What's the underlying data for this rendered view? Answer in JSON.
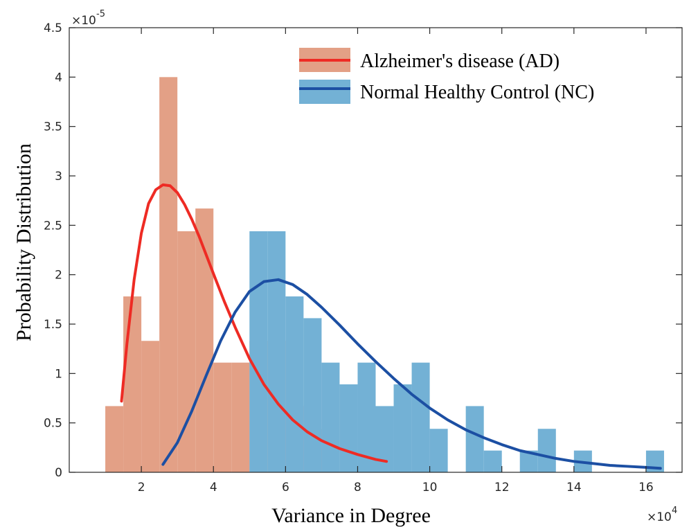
{
  "chart_data": {
    "type": "bar",
    "xlabel": "Variance in Degree",
    "ylabel": "Probability Distribution",
    "x_multiplier": "×10",
    "x_multiplier_exp": "4",
    "y_multiplier": "×10",
    "y_multiplier_exp": "-5",
    "xlim": [
      0,
      17
    ],
    "ylim": [
      0,
      4.5
    ],
    "x_ticks": [
      2,
      4,
      6,
      8,
      10,
      12,
      14,
      16
    ],
    "y_ticks": [
      0,
      0.5,
      1,
      1.5,
      2,
      2.5,
      3,
      3.5,
      4,
      4.5
    ],
    "x_tick_labels": [
      "2",
      "4",
      "6",
      "8",
      "10",
      "12",
      "14",
      "16"
    ],
    "y_tick_labels": [
      "0",
      "0.5",
      "1",
      "1.5",
      "2",
      "2.5",
      "3",
      "3.5",
      "4",
      "4.5"
    ],
    "legend_position": "top-right",
    "series": [
      {
        "name": "Alzheimer's disease (AD)",
        "bar_color": "#e3a086",
        "line_color": "#ee2b24",
        "bin_edges": [
          1.0,
          1.5,
          2.0,
          2.5,
          3.0,
          3.5,
          4.0,
          4.5,
          5.0,
          5.5,
          6.0,
          6.5,
          7.0,
          7.5,
          8.0,
          8.5,
          9.0
        ],
        "heights": [
          0.67,
          1.78,
          1.33,
          4.0,
          2.44,
          2.67,
          1.11,
          1.11,
          1.33,
          1.33,
          0.67,
          0.44,
          0,
          0,
          0.44,
          0.44
        ],
        "curve_x": [
          1.45,
          1.6,
          1.8,
          2.0,
          2.2,
          2.4,
          2.6,
          2.8,
          3.0,
          3.2,
          3.4,
          3.6,
          3.8,
          4.0,
          4.3,
          4.6,
          5.0,
          5.4,
          5.8,
          6.2,
          6.6,
          7.0,
          7.5,
          8.0,
          8.5,
          8.8
        ],
        "curve_y": [
          0.72,
          1.3,
          1.95,
          2.42,
          2.72,
          2.86,
          2.91,
          2.9,
          2.83,
          2.71,
          2.56,
          2.39,
          2.2,
          2.01,
          1.73,
          1.47,
          1.15,
          0.89,
          0.69,
          0.53,
          0.41,
          0.32,
          0.24,
          0.18,
          0.13,
          0.11
        ]
      },
      {
        "name": "Normal Healthy Control (NC)",
        "bar_color": "#73b1d5",
        "line_color": "#1c4fa3",
        "bin_edges": [
          5.0,
          5.5,
          6.0,
          6.5,
          7.0,
          7.5,
          8.0,
          8.5,
          9.0,
          9.5,
          10.0,
          10.5,
          11.0,
          11.5,
          12.0,
          12.5,
          13.0,
          13.5,
          14.0,
          14.5,
          15.0,
          15.5,
          16.0,
          16.5
        ],
        "heights": [
          2.44,
          2.44,
          1.78,
          1.56,
          1.11,
          0.89,
          1.11,
          0.67,
          0.89,
          1.11,
          0.44,
          0,
          0.67,
          0.22,
          0,
          0.22,
          0.44,
          0,
          0.22,
          0,
          0,
          0,
          0.22
        ],
        "curve_x": [
          2.6,
          3.0,
          3.4,
          3.8,
          4.2,
          4.6,
          5.0,
          5.4,
          5.8,
          6.2,
          6.6,
          7.0,
          7.5,
          8.0,
          8.5,
          9.0,
          9.5,
          10.0,
          10.5,
          11.0,
          11.5,
          12.0,
          12.5,
          13.0,
          13.5,
          14.0,
          14.5,
          15.0,
          15.5,
          16.0,
          16.4
        ],
        "curve_y": [
          0.08,
          0.3,
          0.62,
          0.98,
          1.33,
          1.62,
          1.83,
          1.93,
          1.95,
          1.9,
          1.8,
          1.67,
          1.49,
          1.3,
          1.12,
          0.95,
          0.79,
          0.65,
          0.53,
          0.43,
          0.35,
          0.28,
          0.22,
          0.18,
          0.14,
          0.11,
          0.09,
          0.07,
          0.06,
          0.05,
          0.04
        ]
      }
    ]
  }
}
